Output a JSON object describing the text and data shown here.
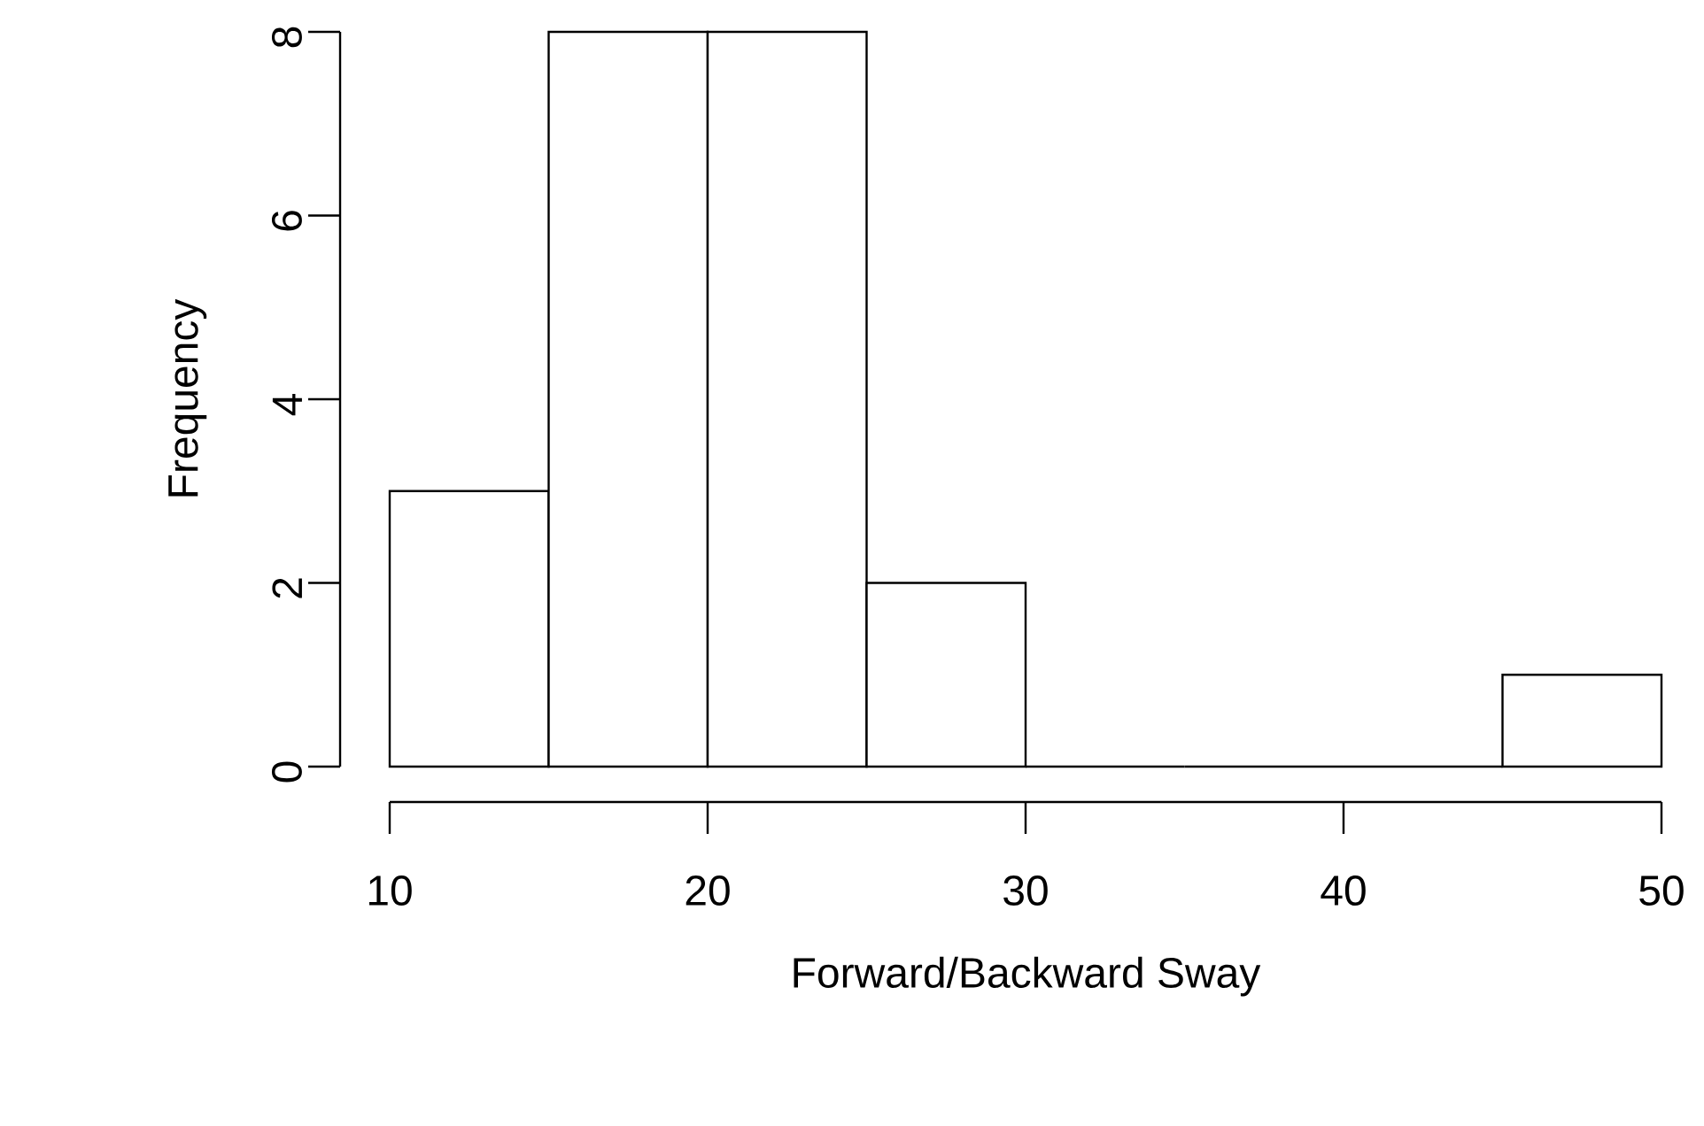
{
  "chart_data": {
    "type": "histogram",
    "xlabel": "Forward/Backward Sway",
    "ylabel": "Frequency",
    "bins": [
      10,
      15,
      20,
      25,
      30,
      35,
      40,
      45,
      50
    ],
    "values": [
      3,
      8,
      8,
      2,
      0,
      0,
      0,
      1
    ],
    "xlim": [
      10,
      50
    ],
    "ylim": [
      0,
      8
    ],
    "xticks": [
      10,
      20,
      30,
      40,
      50
    ],
    "yticks": [
      0,
      2,
      4,
      6,
      8
    ]
  }
}
